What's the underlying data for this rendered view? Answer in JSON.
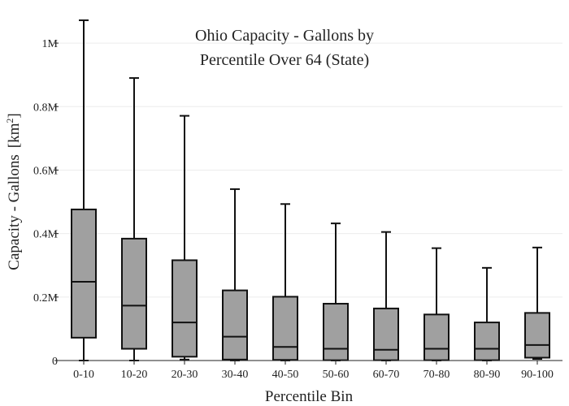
{
  "chart_data": {
    "type": "box",
    "title_lines": [
      "Ohio Capacity - Gallons by",
      "Percentile Over 64 (State)"
    ],
    "xlabel": "Percentile Bin",
    "ylabel": "Capacity - Gallons",
    "ylabel_unit_base": "km",
    "ylabel_unit_exp": "2",
    "ylim": [
      0,
      1100000
    ],
    "yticks": [
      0,
      200000,
      400000,
      600000,
      800000,
      1000000
    ],
    "ytick_labels": [
      "0",
      "0.2M",
      "0.4M",
      "0.6M",
      "0.8M",
      "1M"
    ],
    "grid": true,
    "box_fill": "#a0a0a0",
    "box_stroke": "#111111",
    "grid_color": "#ececec",
    "categories": [
      "0-10",
      "10-20",
      "20-30",
      "30-40",
      "40-50",
      "50-60",
      "60-70",
      "70-80",
      "80-90",
      "90-100"
    ],
    "boxes": [
      {
        "min": 0,
        "q1": 72000,
        "median": 248000,
        "q3": 476000,
        "max": 1072000
      },
      {
        "min": 0,
        "q1": 37000,
        "median": 173000,
        "q3": 384000,
        "max": 890000
      },
      {
        "min": 3000,
        "q1": 12000,
        "median": 120000,
        "q3": 316000,
        "max": 771000
      },
      {
        "min": 0,
        "q1": 3000,
        "median": 75000,
        "q3": 221000,
        "max": 540000
      },
      {
        "min": 0,
        "q1": 2000,
        "median": 43000,
        "q3": 201000,
        "max": 493000
      },
      {
        "min": 0,
        "q1": 1000,
        "median": 37000,
        "q3": 179000,
        "max": 432000
      },
      {
        "min": 0,
        "q1": 1000,
        "median": 34000,
        "q3": 164000,
        "max": 405000
      },
      {
        "min": 0,
        "q1": 1000,
        "median": 37000,
        "q3": 145000,
        "max": 354000
      },
      {
        "min": 0,
        "q1": 1000,
        "median": 37000,
        "q3": 120000,
        "max": 292000
      },
      {
        "min": 5000,
        "q1": 9000,
        "median": 49000,
        "q3": 150000,
        "max": 356000
      }
    ]
  }
}
